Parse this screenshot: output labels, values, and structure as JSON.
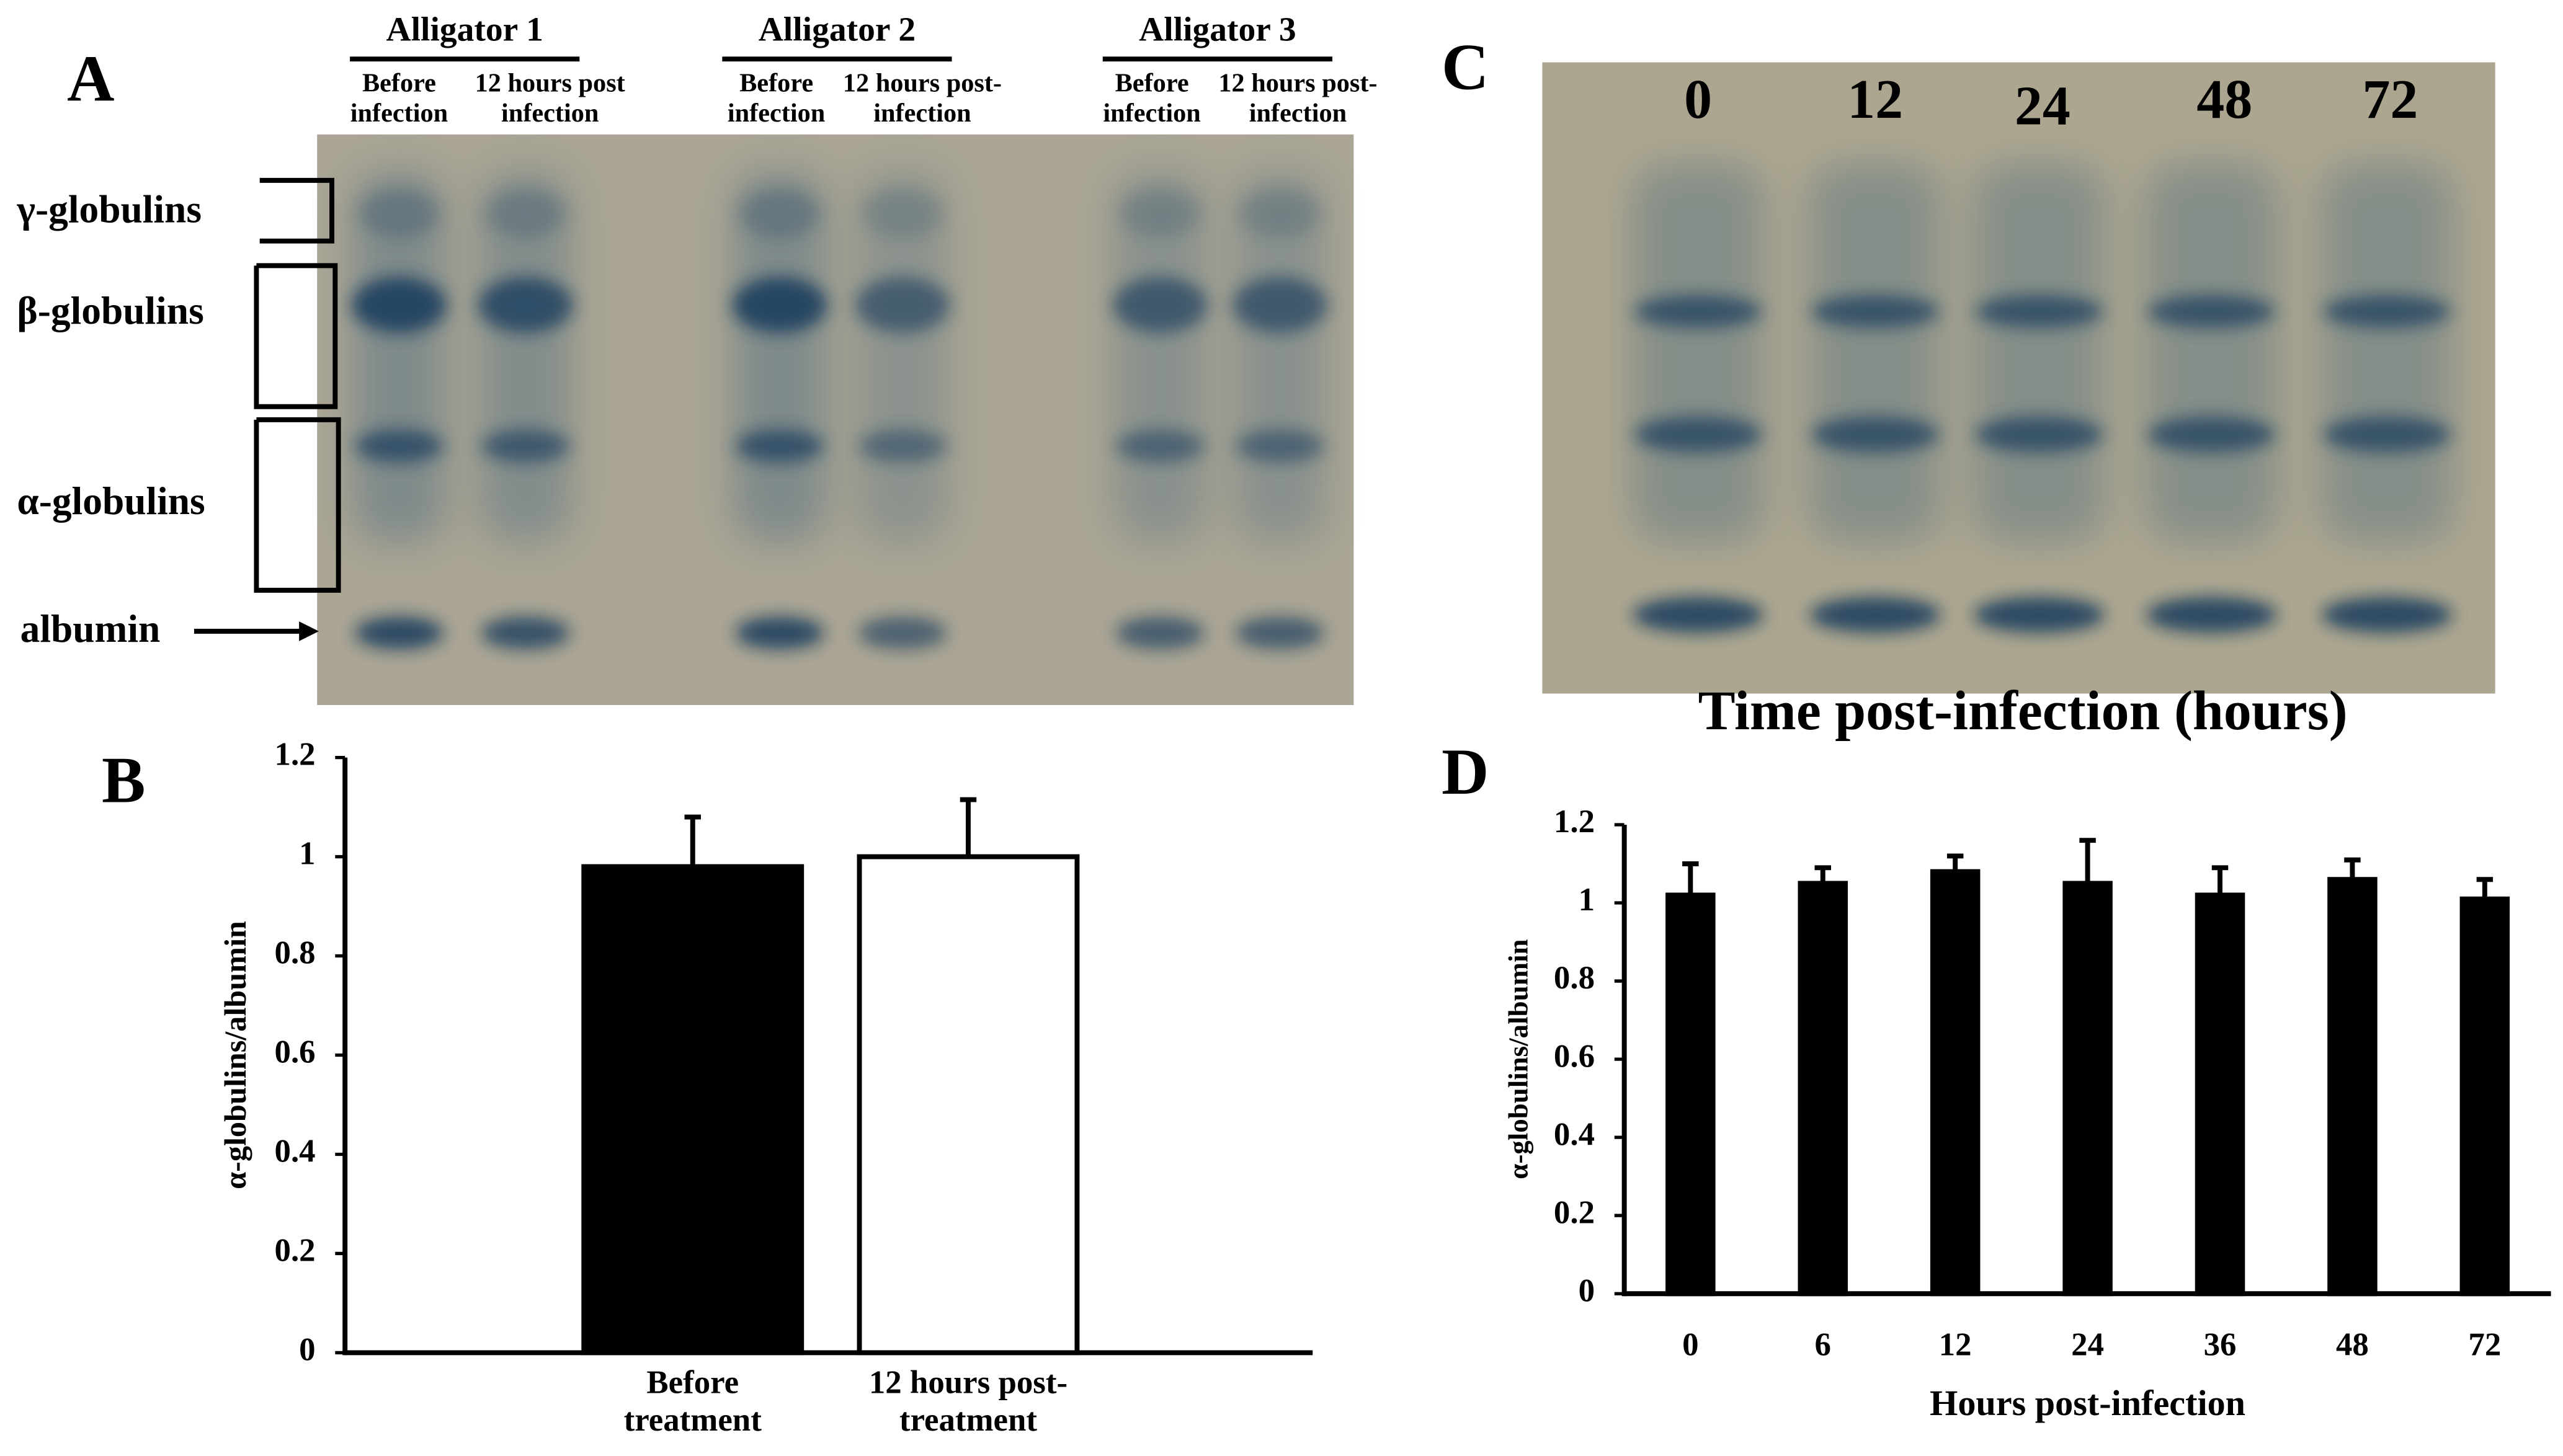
{
  "panel_labels": [
    "A",
    "B",
    "C",
    "D"
  ],
  "gel_a": {
    "animals": [
      {
        "name": "Alligator 1",
        "lanes": [
          "Before\ninfection",
          "12 hours post\ninfection"
        ]
      },
      {
        "name": "Alligator 2",
        "lanes": [
          "Before\ninfection",
          "12 hours post-\ninfection"
        ]
      },
      {
        "name": "Alligator 3",
        "lanes": [
          "Before\ninfection",
          "12 hours post-\ninfection"
        ]
      }
    ],
    "bands": [
      "γ-globulins",
      "β-globulins",
      "α-globulins",
      "albumin"
    ]
  },
  "gel_c": {
    "lanes": [
      "0",
      "12",
      "24",
      "48",
      "72"
    ],
    "xlabel": "Time post-infection (hours)"
  },
  "chart_data": [
    {
      "type": "bar",
      "ylabel": "α-globulins/albumin",
      "categories": [
        "Before\ntreatment",
        "12 hours post-\ntreatment"
      ],
      "values": [
        0.98,
        1.0
      ],
      "errors": [
        0.1,
        0.115
      ],
      "colors": [
        "#000000",
        "#ffffff"
      ],
      "edgecolor": "#000000",
      "ylim": [
        0,
        1.2
      ],
      "yticks": [
        0,
        0.2,
        0.4,
        0.6,
        0.8,
        1,
        1.2
      ]
    },
    {
      "type": "bar",
      "ylabel": "α-globulins/albumin",
      "xlabel": "Hours post-infection",
      "categories": [
        "0",
        "6",
        "12",
        "24",
        "36",
        "48",
        "72"
      ],
      "values": [
        1.02,
        1.05,
        1.08,
        1.05,
        1.02,
        1.06,
        1.01
      ],
      "errors": [
        0.08,
        0.04,
        0.04,
        0.11,
        0.07,
        0.05,
        0.05
      ],
      "colors": [
        "#000000",
        "#000000",
        "#000000",
        "#000000",
        "#000000",
        "#000000",
        "#000000"
      ],
      "edgecolor": "#000000",
      "ylim": [
        0,
        1.2
      ],
      "yticks": [
        0,
        0.2,
        0.4,
        0.6,
        0.8,
        1,
        1.2
      ]
    }
  ]
}
